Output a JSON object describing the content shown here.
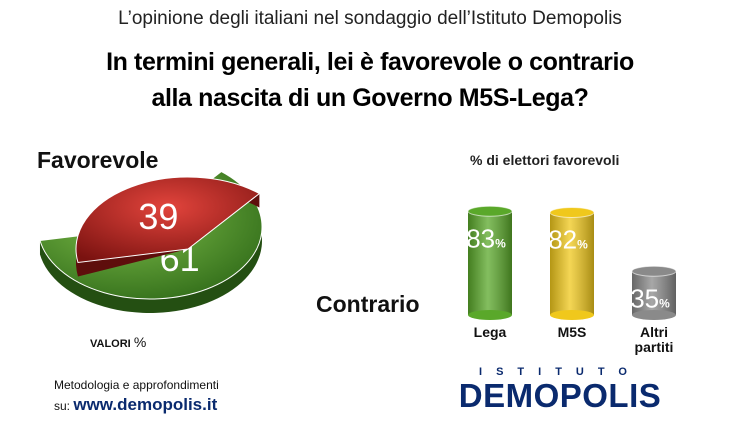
{
  "header": "L’opinione degli italiani nel sondaggio dell’Istituto Demopolis",
  "question": {
    "line1": "In termini generali, lei è favorevole o contrario",
    "line2": "alla nascita di un Governo M5S-Lega?"
  },
  "chart_data": [
    {
      "type": "pie",
      "slices": [
        {
          "label": "Favorevole",
          "value": 61,
          "color": "#4a8a2a"
        },
        {
          "label": "Contrario",
          "value": 39,
          "color": "#b0201c"
        }
      ],
      "note_label": "VALORI",
      "note_unit": "%"
    },
    {
      "type": "bar",
      "title": "% di elettori favorevoli",
      "categories": [
        "Lega",
        "M5S",
        "Altri partiti"
      ],
      "category_lines": [
        [
          "Lega"
        ],
        [
          "M5S"
        ],
        [
          "Altri",
          "partiti"
        ]
      ],
      "values": [
        83,
        82,
        35
      ],
      "unit": "%",
      "colors": [
        "#5aa82a",
        "#f0c81c",
        "#8a8a8a"
      ],
      "ylim": [
        0,
        100
      ]
    }
  ],
  "footer": {
    "method": "Metodologia e approfondimenti",
    "website_prefix": "su:",
    "website_url": "www.demopolis.it"
  },
  "logo": {
    "top": "ISTITUTO",
    "main": "DEMOPOLIS"
  }
}
